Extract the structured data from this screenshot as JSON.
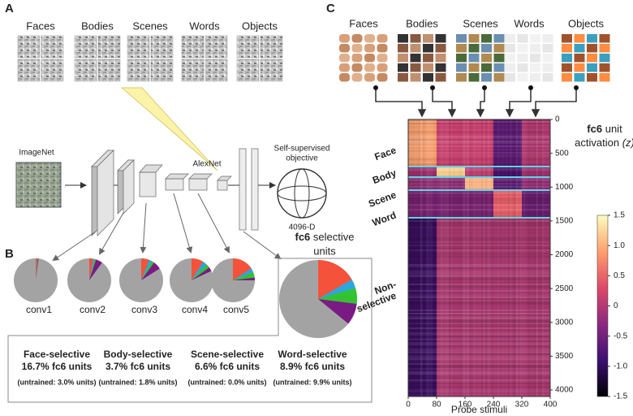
{
  "panel_a": {
    "label": "A",
    "categories": [
      "Faces",
      "Bodies",
      "Scenes",
      "Words",
      "Objects"
    ],
    "input": "ImageNet",
    "network": "AlexNet",
    "objective": [
      "Self-supervised",
      "objective"
    ],
    "dim": "4096-D"
  },
  "panel_b": {
    "label": "B",
    "fc6_title": {
      "bold": "fc6",
      "rest": "selective",
      "line2": "units"
    },
    "groups": [
      {
        "name": "Face-selective",
        "color": "#f4523b",
        "fc6_label": "16.7% fc6 units",
        "untrained": "(untrained: 3.0% units)"
      },
      {
        "name": "Body-selective",
        "color": "#2aa6e0",
        "fc6_label": "3.7% fc6 units",
        "untrained": "(untrained: 1.8% units)"
      },
      {
        "name": "Scene-selective",
        "color": "#33c232",
        "fc6_label": "6.6% fc6 units",
        "untrained": "(untrained: 0.0% units)"
      },
      {
        "name": "Word-selective",
        "color": "#7a1b84",
        "fc6_label": "8.9% fc6 units",
        "untrained": "(untrained: 9.9% units)"
      }
    ],
    "layers": [
      {
        "name": "conv1",
        "values": [
          1,
          0.3,
          0.3,
          0.5
        ]
      },
      {
        "name": "conv2",
        "values": [
          3,
          1,
          1,
          5
        ]
      },
      {
        "name": "conv3",
        "values": [
          6,
          2,
          2,
          6
        ]
      },
      {
        "name": "conv4",
        "values": [
          9,
          3,
          3,
          3
        ]
      },
      {
        "name": "conv5",
        "values": [
          16,
          3,
          4,
          2
        ]
      }
    ],
    "fc6_values": [
      16.7,
      3.7,
      6.6,
      8.9
    ]
  },
  "panel_c": {
    "label": "C",
    "categories": [
      "Faces",
      "Bodies",
      "Scenes",
      "Words",
      "Objects"
    ],
    "heatmap": {
      "xlim": [
        0,
        400
      ],
      "xticks": [
        0,
        80,
        160,
        240,
        320,
        400
      ],
      "ylim": [
        0,
        4096
      ],
      "yticks": [
        0,
        500,
        1000,
        1500,
        2000,
        2500,
        3000,
        3500,
        4000
      ],
      "xlabel": "Probe stimuli",
      "row_groups": [
        {
          "lines": [
            "Face"
          ],
          "color": "#f4523b"
        },
        {
          "lines": [
            "Body"
          ],
          "color": "#2aa6e0"
        },
        {
          "lines": [
            "Scene"
          ],
          "color": "#33c232"
        },
        {
          "lines": [
            "Word"
          ],
          "color": "#7a1b84"
        },
        {
          "lines": [
            "Non-",
            "selective"
          ],
          "color": "#aaaaaa"
        }
      ]
    },
    "colorbar": {
      "title": {
        "bold": "fc6",
        "rest": "unit",
        "line2": "activation",
        "z": "(z)"
      },
      "lim": [
        -1.5,
        1.5
      ],
      "ticks": [
        -1.5,
        {
          "value": -1,
          "label": "-1.0"
        },
        -0.5,
        0,
        0.5,
        {
          "value": 1,
          "label": "1.0"
        },
        1.5
      ]
    }
  }
}
